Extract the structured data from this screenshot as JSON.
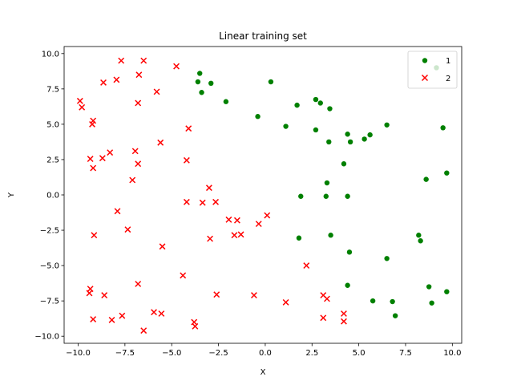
{
  "chart_data": {
    "type": "scatter",
    "title": "Linear training set",
    "xlabel": "X",
    "ylabel": "Y",
    "xlim": [
      -10.75,
      10.5
    ],
    "ylim": [
      -10.5,
      10.5
    ],
    "xticks": [
      -10.0,
      -7.5,
      -5.0,
      -2.5,
      0.0,
      2.5,
      5.0,
      7.5,
      10.0
    ],
    "xtick_labels": [
      "−10.0",
      "−7.5",
      "−5.0",
      "−2.5",
      "0.0",
      "2.5",
      "5.0",
      "7.5",
      "10.0"
    ],
    "yticks": [
      10.0,
      7.5,
      5.0,
      2.5,
      0.0,
      -2.5,
      -5.0,
      -7.5,
      -10.0
    ],
    "ytick_labels": [
      "10.0",
      "7.5",
      "5.0",
      "2.5",
      "0.0",
      "−2.5",
      "−5.0",
      "−7.5",
      "−10.0"
    ],
    "grid": false,
    "legend_position": "top-right",
    "series": [
      {
        "name": "1",
        "marker": "circle",
        "color": "#008000",
        "points": [
          [
            -3.5,
            8.6
          ],
          [
            -3.6,
            8.0
          ],
          [
            -2.9,
            7.9
          ],
          [
            -3.4,
            7.25
          ],
          [
            0.3,
            8.0
          ],
          [
            -2.1,
            6.6
          ],
          [
            -0.4,
            5.55
          ],
          [
            1.7,
            6.35
          ],
          [
            2.7,
            6.75
          ],
          [
            2.95,
            6.5
          ],
          [
            3.45,
            6.1
          ],
          [
            1.1,
            4.85
          ],
          [
            2.7,
            4.6
          ],
          [
            3.4,
            3.75
          ],
          [
            4.4,
            4.3
          ],
          [
            4.55,
            3.75
          ],
          [
            5.3,
            3.95
          ],
          [
            5.6,
            4.25
          ],
          [
            6.5,
            4.95
          ],
          [
            9.5,
            4.75
          ],
          [
            4.2,
            2.2
          ],
          [
            9.7,
            1.55
          ],
          [
            8.6,
            1.1
          ],
          [
            3.3,
            0.85
          ],
          [
            1.9,
            -0.1
          ],
          [
            3.25,
            -0.1
          ],
          [
            4.4,
            -0.1
          ],
          [
            1.8,
            -3.05
          ],
          [
            3.5,
            -2.85
          ],
          [
            8.2,
            -2.85
          ],
          [
            8.3,
            -3.25
          ],
          [
            4.5,
            -4.05
          ],
          [
            6.5,
            -4.5
          ],
          [
            4.4,
            -6.4
          ],
          [
            8.75,
            -6.5
          ],
          [
            9.7,
            -6.85
          ],
          [
            5.75,
            -7.5
          ],
          [
            6.8,
            -7.55
          ],
          [
            8.9,
            -7.65
          ],
          [
            6.95,
            -8.55
          ],
          [
            9.15,
            9.0
          ]
        ]
      },
      {
        "name": "2",
        "marker": "x",
        "color": "#ff0000",
        "points": [
          [
            -7.7,
            9.5
          ],
          [
            -6.5,
            9.5
          ],
          [
            -4.75,
            9.1
          ],
          [
            -6.75,
            8.5
          ],
          [
            -8.65,
            7.95
          ],
          [
            -7.95,
            8.15
          ],
          [
            -5.8,
            7.3
          ],
          [
            -6.8,
            6.5
          ],
          [
            -9.9,
            6.65
          ],
          [
            -9.8,
            6.2
          ],
          [
            -9.2,
            5.25
          ],
          [
            -9.25,
            5.0
          ],
          [
            -4.1,
            4.7
          ],
          [
            -5.6,
            3.7
          ],
          [
            -6.95,
            3.1
          ],
          [
            -8.3,
            3.0
          ],
          [
            -9.35,
            2.55
          ],
          [
            -8.7,
            2.6
          ],
          [
            -6.8,
            2.2
          ],
          [
            -9.2,
            1.9
          ],
          [
            -4.2,
            2.45
          ],
          [
            -7.1,
            1.05
          ],
          [
            -3.0,
            0.5
          ],
          [
            -4.2,
            -0.5
          ],
          [
            -3.35,
            -0.55
          ],
          [
            -2.65,
            -0.5
          ],
          [
            0.1,
            -1.45
          ],
          [
            -7.9,
            -1.15
          ],
          [
            -1.95,
            -1.75
          ],
          [
            -1.5,
            -1.8
          ],
          [
            -0.35,
            -2.05
          ],
          [
            -7.35,
            -2.45
          ],
          [
            -1.65,
            -2.85
          ],
          [
            -1.3,
            -2.8
          ],
          [
            -9.15,
            -2.85
          ],
          [
            -2.95,
            -3.1
          ],
          [
            -5.5,
            -3.65
          ],
          [
            2.2,
            -5.0
          ],
          [
            -4.4,
            -5.7
          ],
          [
            -6.8,
            -6.3
          ],
          [
            -9.35,
            -6.65
          ],
          [
            -9.4,
            -6.95
          ],
          [
            -8.6,
            -7.1
          ],
          [
            -2.6,
            -7.05
          ],
          [
            -0.6,
            -7.1
          ],
          [
            3.1,
            -7.1
          ],
          [
            3.3,
            -7.35
          ],
          [
            1.1,
            -7.6
          ],
          [
            -5.95,
            -8.3
          ],
          [
            -5.55,
            -8.4
          ],
          [
            4.2,
            -8.4
          ],
          [
            -7.65,
            -8.55
          ],
          [
            -9.2,
            -8.8
          ],
          [
            -8.2,
            -8.85
          ],
          [
            3.1,
            -8.7
          ],
          [
            4.2,
            -8.95
          ],
          [
            -3.8,
            -9.0
          ],
          [
            -3.75,
            -9.3
          ],
          [
            -6.5,
            -9.6
          ]
        ]
      }
    ]
  }
}
